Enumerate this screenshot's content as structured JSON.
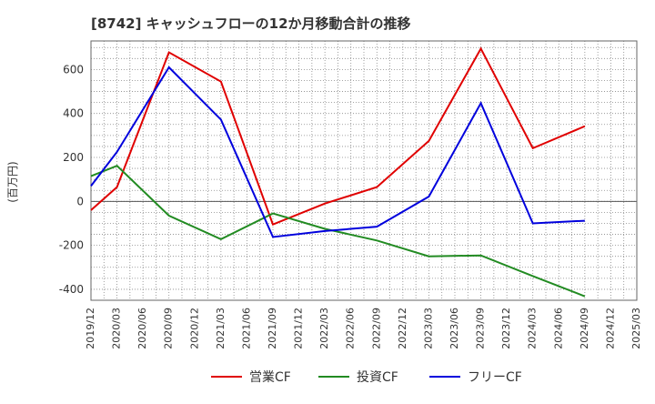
{
  "chart_data": {
    "type": "line",
    "title": "[8742]  キャッシュフローの12か月移動合計の推移",
    "ylabel": "(百万円)",
    "xlabel": "",
    "ylim": [
      -450,
      730
    ],
    "yticks": [
      -400,
      -200,
      0,
      200,
      400,
      600
    ],
    "grid": true,
    "legend_position": "bottom",
    "x_ticks": [
      "2019/12",
      "2020/03",
      "2020/06",
      "2020/09",
      "2020/12",
      "2021/03",
      "2021/06",
      "2021/09",
      "2021/12",
      "2022/03",
      "2022/06",
      "2022/09",
      "2022/12",
      "2023/03",
      "2023/06",
      "2023/09",
      "2023/12",
      "2024/03",
      "2024/06",
      "2024/09",
      "2024/12",
      "2025/03"
    ],
    "series": [
      {
        "name": "営業CF",
        "color": "#e00000",
        "points": [
          [
            "2019/12",
            -40
          ],
          [
            "2020/03",
            65
          ],
          [
            "2020/09",
            678
          ],
          [
            "2021/03",
            545
          ],
          [
            "2021/09",
            -105
          ],
          [
            "2022/03",
            -10
          ],
          [
            "2022/09",
            65
          ],
          [
            "2023/03",
            275
          ],
          [
            "2023/09",
            695
          ],
          [
            "2024/03",
            242
          ],
          [
            "2024/09",
            342
          ]
        ]
      },
      {
        "name": "投資CF",
        "color": "#228b22",
        "points": [
          [
            "2019/12",
            115
          ],
          [
            "2020/03",
            162
          ],
          [
            "2020/09",
            -65
          ],
          [
            "2021/03",
            -172
          ],
          [
            "2021/09",
            -55
          ],
          [
            "2022/03",
            -125
          ],
          [
            "2022/09",
            -178
          ],
          [
            "2023/03",
            -250
          ],
          [
            "2023/09",
            -246
          ],
          [
            "2024/03",
            -340
          ],
          [
            "2024/09",
            -432
          ]
        ]
      },
      {
        "name": "フリーCF",
        "color": "#0000dd",
        "points": [
          [
            "2019/12",
            70
          ],
          [
            "2020/03",
            225
          ],
          [
            "2020/09",
            610
          ],
          [
            "2021/03",
            372
          ],
          [
            "2021/09",
            -162
          ],
          [
            "2022/03",
            -135
          ],
          [
            "2022/09",
            -115
          ],
          [
            "2023/03",
            22
          ],
          [
            "2023/09",
            447
          ],
          [
            "2024/03",
            -100
          ],
          [
            "2024/09",
            -88
          ]
        ]
      }
    ]
  }
}
